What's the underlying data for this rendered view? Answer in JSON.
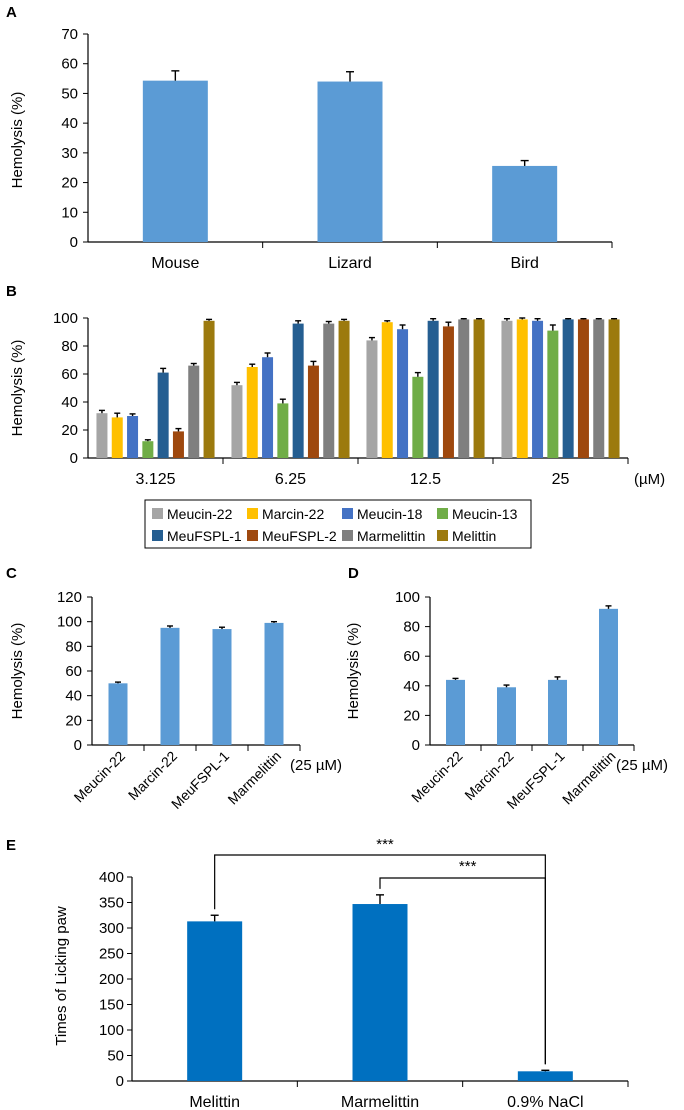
{
  "chart_data": [
    {
      "panel": "A",
      "type": "bar",
      "ylabel": "Hemolysis (%)",
      "ylim": [
        0,
        70
      ],
      "yticks": [
        0,
        10,
        20,
        30,
        40,
        50,
        60,
        70
      ],
      "categories": [
        "Mouse",
        "Lizard",
        "Bird"
      ],
      "values": [
        54.3,
        54.0,
        25.6
      ],
      "errors": [
        3.3,
        3.3,
        1.8
      ],
      "color": "#5b9bd5"
    },
    {
      "panel": "B",
      "type": "bar",
      "ylabel": "Hemolysis (%)",
      "ylim": [
        0,
        100
      ],
      "yticks": [
        0,
        20,
        40,
        60,
        80,
        100
      ],
      "categories": [
        "3.125",
        "6.25",
        "12.5",
        "25"
      ],
      "unit": "(µM)",
      "series": [
        {
          "name": "Meucin-22",
          "color": "#a5a5a5",
          "values": [
            32,
            52,
            84,
            98
          ],
          "errors": [
            2,
            2,
            2,
            1.5
          ]
        },
        {
          "name": "Marcin-22",
          "color": "#ffc000",
          "values": [
            29,
            65,
            97,
            99
          ],
          "errors": [
            3,
            2,
            1,
            1
          ]
        },
        {
          "name": "Meucin-18",
          "color": "#4472c4",
          "values": [
            30,
            72,
            92,
            98
          ],
          "errors": [
            1.5,
            3,
            3,
            1.5
          ]
        },
        {
          "name": "Meucin-13",
          "color": "#70ad47",
          "values": [
            12,
            39,
            58,
            91
          ],
          "errors": [
            1,
            3,
            3,
            4
          ]
        },
        {
          "name": "MeuFSPL-1",
          "color": "#255e91",
          "values": [
            61,
            96,
            98,
            99
          ],
          "errors": [
            3,
            2,
            1.5,
            0.5
          ]
        },
        {
          "name": "MeuFSPL-2",
          "color": "#9e480e",
          "values": [
            19,
            66,
            94,
            99
          ],
          "errors": [
            2,
            3,
            3,
            0.5
          ]
        },
        {
          "name": "Marmelittin",
          "color": "#7f7f7f",
          "values": [
            66,
            96,
            99,
            99
          ],
          "errors": [
            1.5,
            1.5,
            0.5,
            0.5
          ]
        },
        {
          "name": "Melittin",
          "color": "#9c7a0e",
          "values": [
            98,
            98,
            99,
            99
          ],
          "errors": [
            1,
            1,
            0.5,
            0.5
          ]
        }
      ]
    },
    {
      "panel": "C",
      "type": "bar",
      "ylabel": "Hemolysis (%)",
      "ylim": [
        0,
        120
      ],
      "yticks": [
        0,
        20,
        40,
        60,
        80,
        100,
        120
      ],
      "categories": [
        "Meucin-22",
        "Marcin-22",
        "MeuFSPL-1",
        "Marmelittin"
      ],
      "values": [
        50,
        95,
        94,
        99
      ],
      "errors": [
        1,
        1.5,
        1.5,
        1
      ],
      "unit": "(25 µM)",
      "color": "#5b9bd5"
    },
    {
      "panel": "D",
      "type": "bar",
      "ylabel": "Hemolysis  (%)",
      "ylim": [
        0,
        100
      ],
      "yticks": [
        0,
        20,
        40,
        60,
        80,
        100
      ],
      "categories": [
        "Meucin-22",
        "Marcin-22",
        "MeuFSPL-1",
        "Marmelittin"
      ],
      "values": [
        44,
        39,
        44,
        92
      ],
      "errors": [
        1,
        1.5,
        2,
        2
      ],
      "unit": "(25 µM)",
      "color": "#5b9bd5"
    },
    {
      "panel": "E",
      "type": "bar",
      "ylabel": "Times of Licking paw",
      "ylim": [
        0,
        400
      ],
      "yticks": [
        0,
        50,
        100,
        150,
        200,
        250,
        300,
        350,
        400
      ],
      "categories": [
        "Melittin",
        "Marmelittin",
        "0.9% NaCl"
      ],
      "values": [
        313,
        347,
        19
      ],
      "errors": [
        12,
        18,
        2
      ],
      "color": "#0070c0",
      "significance": [
        {
          "from": "Melittin",
          "to": "0.9% NaCl",
          "label": "***"
        },
        {
          "from": "Marmelittin",
          "to": "0.9% NaCl",
          "label": "***"
        }
      ]
    }
  ]
}
